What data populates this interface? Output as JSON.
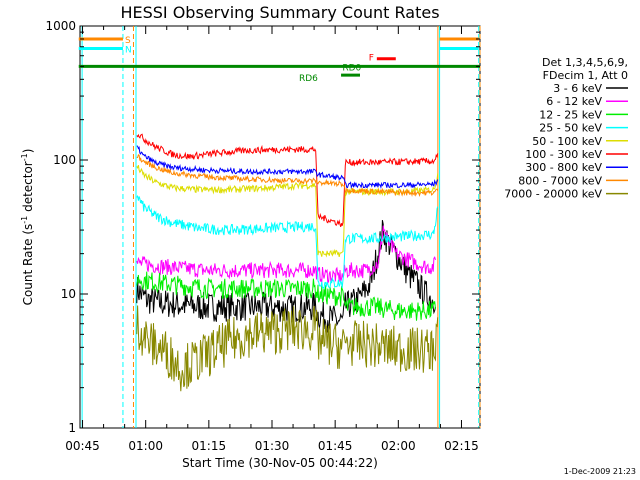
{
  "chart_data": {
    "type": "line",
    "title": "HESSI Observing Summary Count Rates",
    "xlabel": "Start Time (30-Nov-05 00:44:22)",
    "ylabel_pre": "Count Rate (s",
    "ylabel_sup1": "-1",
    "ylabel_mid": " detector",
    "ylabel_sup2": "-1",
    "ylabel_post": ")",
    "x_range_minutes": [
      0,
      95
    ],
    "x_ticks": [
      {
        "label": "00:45",
        "t": 0.6
      },
      {
        "label": "01:00",
        "t": 15.6
      },
      {
        "label": "01:15",
        "t": 30.6
      },
      {
        "label": "01:30",
        "t": 45.6
      },
      {
        "label": "01:45",
        "t": 60.6
      },
      {
        "label": "02:00",
        "t": 75.6
      },
      {
        "label": "02:15",
        "t": 90.6
      }
    ],
    "y_scale": "log",
    "ylim": [
      1,
      1000
    ],
    "y_tick_labels": [
      {
        "label": "1",
        "v": 1
      },
      {
        "label": "10",
        "v": 10
      },
      {
        "label": "100",
        "v": 100
      },
      {
        "label": "1000",
        "v": 1000
      }
    ],
    "legend_header": [
      "Det 1,3,4,5,6,9,",
      "FDecim 1, Att 0"
    ],
    "series": [
      {
        "name": "3 - 6 keV",
        "color": "#000000",
        "points": [
          [
            13.5,
            11
          ],
          [
            14.5,
            10
          ],
          [
            16,
            9
          ],
          [
            20,
            8.5
          ],
          [
            30,
            8
          ],
          [
            40,
            8
          ],
          [
            45,
            8
          ],
          [
            50,
            7.8
          ],
          [
            55,
            8
          ],
          [
            56,
            8
          ],
          [
            56.5,
            7
          ],
          [
            60,
            6.5
          ],
          [
            62.5,
            6.2
          ],
          [
            63,
            8
          ],
          [
            66,
            9
          ],
          [
            69,
            12
          ],
          [
            71,
            22
          ],
          [
            72,
            30
          ],
          [
            73,
            25
          ],
          [
            74,
            22
          ],
          [
            76,
            18
          ],
          [
            78,
            14
          ],
          [
            80,
            12
          ],
          [
            82,
            10
          ],
          [
            83,
            9.5
          ],
          [
            84,
            9
          ],
          [
            84.5,
            10
          ]
        ]
      },
      {
        "name": "6 - 12 keV",
        "color": "#ff00ff",
        "points": [
          [
            13.5,
            17
          ],
          [
            20,
            16
          ],
          [
            30,
            15
          ],
          [
            40,
            15
          ],
          [
            50,
            15
          ],
          [
            56,
            15
          ],
          [
            56.5,
            14
          ],
          [
            62.5,
            13.5
          ],
          [
            63,
            15
          ],
          [
            68,
            15
          ],
          [
            71,
            17
          ],
          [
            72,
            32
          ],
          [
            73,
            25
          ],
          [
            75,
            20
          ],
          [
            78,
            18
          ],
          [
            82,
            16
          ],
          [
            84,
            16
          ],
          [
            84.5,
            18
          ]
        ]
      },
      {
        "name": "12 - 25 keV",
        "color": "#00ee00",
        "points": [
          [
            13.5,
            13
          ],
          [
            20,
            12
          ],
          [
            30,
            11
          ],
          [
            40,
            11
          ],
          [
            50,
            11
          ],
          [
            56,
            11
          ],
          [
            56.5,
            10
          ],
          [
            62.5,
            9.5
          ],
          [
            63,
            8
          ],
          [
            70,
            8
          ],
          [
            75,
            7.5
          ],
          [
            80,
            7.5
          ],
          [
            84,
            7.5
          ],
          [
            84.5,
            8
          ]
        ]
      },
      {
        "name": "25 - 50 keV",
        "color": "#00ffff",
        "points": [
          [
            13.5,
            55
          ],
          [
            15,
            45
          ],
          [
            18,
            38
          ],
          [
            22,
            34
          ],
          [
            28,
            31
          ],
          [
            35,
            30
          ],
          [
            45,
            31
          ],
          [
            50,
            31.5
          ],
          [
            56,
            32
          ],
          [
            56.5,
            12
          ],
          [
            62.5,
            12
          ],
          [
            63,
            26
          ],
          [
            70,
            26
          ],
          [
            78,
            27
          ],
          [
            84,
            28
          ],
          [
            85,
            45
          ]
        ]
      },
      {
        "name": "50 - 100 keV",
        "color": "#dddd00",
        "points": [
          [
            13.5,
            90
          ],
          [
            15,
            78
          ],
          [
            18,
            68
          ],
          [
            22,
            62
          ],
          [
            28,
            60
          ],
          [
            35,
            60
          ],
          [
            45,
            62
          ],
          [
            50,
            64
          ],
          [
            56,
            65
          ],
          [
            56.5,
            20
          ],
          [
            62.5,
            20
          ],
          [
            63,
            58
          ],
          [
            70,
            58
          ],
          [
            78,
            58
          ],
          [
            84,
            60
          ],
          [
            85,
            78
          ]
        ]
      },
      {
        "name": "100 - 300 keV",
        "color": "#ff0000",
        "points": [
          [
            13.5,
            160
          ],
          [
            15,
            145
          ],
          [
            18,
            125
          ],
          [
            22,
            110
          ],
          [
            26,
            106
          ],
          [
            32,
            112
          ],
          [
            40,
            118
          ],
          [
            48,
            120
          ],
          [
            56,
            120
          ],
          [
            56.5,
            38
          ],
          [
            62.5,
            33
          ],
          [
            63,
            96
          ],
          [
            70,
            96
          ],
          [
            78,
            97
          ],
          [
            84,
            98
          ],
          [
            85,
            108
          ]
        ]
      },
      {
        "name": "300 - 800 keV",
        "color": "#0000ff",
        "points": [
          [
            13.5,
            125
          ],
          [
            15,
            108
          ],
          [
            18,
            95
          ],
          [
            22,
            88
          ],
          [
            30,
            84
          ],
          [
            40,
            82
          ],
          [
            50,
            82
          ],
          [
            56,
            82
          ],
          [
            56.5,
            78
          ],
          [
            62.5,
            73
          ],
          [
            63,
            65
          ],
          [
            70,
            65
          ],
          [
            78,
            65
          ],
          [
            84,
            66
          ],
          [
            85,
            70
          ]
        ]
      },
      {
        "name": "800 - 7000 keV",
        "color": "#ff8800",
        "points": [
          [
            13.5,
            108
          ],
          [
            15,
            98
          ],
          [
            18,
            88
          ],
          [
            22,
            80
          ],
          [
            30,
            75
          ],
          [
            40,
            72
          ],
          [
            50,
            70
          ],
          [
            56,
            70
          ],
          [
            56.5,
            68
          ],
          [
            62.5,
            66
          ],
          [
            63,
            60
          ],
          [
            70,
            58
          ],
          [
            78,
            57
          ],
          [
            84,
            57
          ],
          [
            85,
            60
          ]
        ]
      },
      {
        "name": "7000 - 20000 keV",
        "color": "#888800",
        "points": [
          [
            13.5,
            6
          ],
          [
            15,
            5
          ],
          [
            17,
            4.2
          ],
          [
            20,
            3.8
          ],
          [
            24,
            2.8
          ],
          [
            28,
            3.2
          ],
          [
            32,
            3.8
          ],
          [
            36,
            4.5
          ],
          [
            40,
            5
          ],
          [
            45,
            5.2
          ],
          [
            50,
            5.5
          ],
          [
            56,
            5.5
          ],
          [
            56.5,
            4.5
          ],
          [
            60,
            4.2
          ],
          [
            62.5,
            4
          ],
          [
            63,
            4.3
          ],
          [
            68,
            4.2
          ],
          [
            72,
            4
          ],
          [
            78,
            3.8
          ],
          [
            84,
            3.8
          ],
          [
            85,
            6
          ]
        ]
      }
    ],
    "state_bars": [
      {
        "label": "S",
        "color": "#ff8800",
        "level": 800,
        "segments": [
          [
            -0.3,
            10.2
          ],
          [
            85.4,
            94.7
          ]
        ]
      },
      {
        "label": "N",
        "color": "#00ffff",
        "level": 680,
        "segments": [
          [
            -0.3,
            10.2
          ],
          [
            85.4,
            94.7
          ]
        ]
      },
      {
        "label": "F",
        "color": "#ff0000",
        "level": 570,
        "segments": [
          [
            70.5,
            75
          ]
        ]
      },
      {
        "label": "RD6",
        "color": "#008800",
        "level": 500,
        "segments": [
          [
            -0.3,
            95
          ]
        ]
      },
      {
        "label": "RD0",
        "color": "#008800",
        "level": 430,
        "segments": [
          [
            62,
            66.5
          ]
        ]
      }
    ],
    "vertical_markers": [
      {
        "t": 0.5,
        "color": "#00ffff",
        "style": "solid"
      },
      {
        "t": 10.2,
        "color": "#00ffff",
        "style": "dashed"
      },
      {
        "t": 12.7,
        "color": "#ff8800",
        "style": "dashed"
      },
      {
        "t": 13.3,
        "color": "#00ffff",
        "style": "solid"
      },
      {
        "t": 85.0,
        "color": "#ff8800",
        "style": "solid"
      },
      {
        "t": 85.4,
        "color": "#00ffff",
        "style": "solid"
      },
      {
        "t": 94.7,
        "color": "#00ffff",
        "style": "dashed"
      },
      {
        "t": 95.0,
        "color": "#ff8800",
        "style": "dashed"
      }
    ],
    "footer_timestamp": "1-Dec-2009 21:23"
  }
}
